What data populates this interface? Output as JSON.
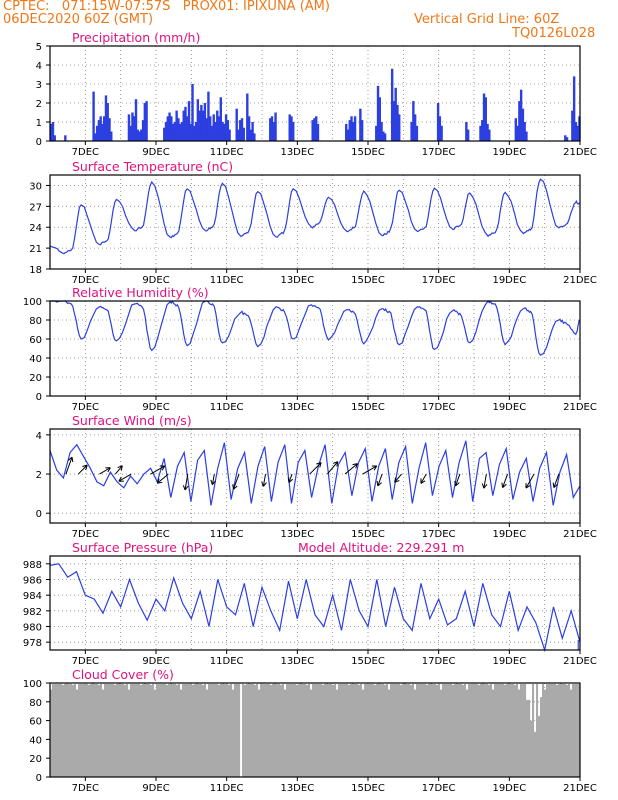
{
  "header": {
    "line1_left": "CPTEC:   071:15W-07:57S   PROX01: IPIXUNA (AM)",
    "line2_left": "06DEC2020 60Z (GMT)",
    "line2_right": "Vertical Grid Line: 60Z",
    "line3_right": "TQ0126L028"
  },
  "colors": {
    "header": "#f07818",
    "title": "#e0127e",
    "series": "#2c3fe0",
    "cloud": "#aaaaaa",
    "wind_arrow": "#000000"
  },
  "x_axis": {
    "tick_labels": [
      "7DEC",
      "9DEC",
      "11DEC",
      "13DEC",
      "15DEC",
      "17DEC",
      "19DEC",
      "21DEC"
    ],
    "range_days": [
      6.0,
      21.0
    ]
  },
  "chart_data": [
    {
      "type": "bar",
      "title": "Precipitation  (mm/h)",
      "ylim": [
        0,
        5
      ],
      "yticks": [
        "0",
        "1",
        "2",
        "3",
        "4",
        "5"
      ],
      "grid": true,
      "bursts": [
        {
          "day": 6.0,
          "values": [
            0.9,
            1.0,
            0.3
          ]
        },
        {
          "day": 6.4,
          "values": [
            0.3
          ]
        },
        {
          "day": 7.2,
          "values": [
            2.6,
            0.4,
            0.8,
            1.1,
            1.3,
            0.9,
            1.3,
            2.4,
            2.0,
            1.2,
            0.5
          ]
        },
        {
          "day": 8.2,
          "values": [
            1.4,
            0.8,
            1.5,
            1.3,
            2.2,
            0.6,
            0.5,
            0.6,
            1.1,
            2.0,
            2.1
          ]
        },
        {
          "day": 9.2,
          "values": [
            0.7,
            1.0,
            1.3,
            1.5,
            1.3,
            0.9,
            1.0,
            1.6,
            1.2,
            0.9,
            1.0,
            1.4,
            0.8,
            1.3,
            0.6
          ]
        },
        {
          "day": 9.75,
          "values": [
            1.6,
            1.8,
            1.1,
            2.1,
            0.9,
            3.0,
            0.8,
            1.0,
            2.2,
            1.6,
            1.9,
            1.6,
            0.6,
            1.2,
            2.6,
            1.3,
            0.8,
            1.4,
            1.0,
            0.6
          ]
        },
        {
          "day": 10.25,
          "values": [
            0.6,
            1.0,
            2.0,
            1.1
          ]
        },
        {
          "day": 10.7,
          "values": [
            1.6,
            1.3,
            2.3,
            1.0,
            0.9,
            1.4,
            1.1,
            0.6
          ]
        },
        {
          "day": 11.25,
          "values": [
            1.7,
            0.6,
            1.1,
            1.2,
            0.7
          ]
        },
        {
          "day": 11.55,
          "values": [
            2.5,
            1.3,
            0.6,
            1.0,
            0.4
          ]
        },
        {
          "day": 12.2,
          "values": [
            1.2,
            1.3,
            1.0,
            1.5
          ]
        },
        {
          "day": 12.75,
          "values": [
            1.4,
            1.3,
            1.0
          ]
        },
        {
          "day": 13.4,
          "values": [
            1.1,
            1.2,
            1.3,
            0.9
          ]
        },
        {
          "day": 14.35,
          "values": [
            0.9,
            0.6,
            1.1,
            1.3,
            1.0,
            1.3
          ]
        },
        {
          "day": 14.75,
          "values": [
            1.7,
            1.1
          ]
        },
        {
          "day": 15.2,
          "values": [
            0.8,
            2.9,
            2.3,
            1.0,
            0.5,
            0.4
          ]
        },
        {
          "day": 15.65,
          "values": [
            3.8,
            2.1,
            2.8,
            1.9,
            1.4
          ]
        },
        {
          "day": 16.2,
          "values": [
            1.0,
            2.1,
            1.4,
            0.8
          ]
        },
        {
          "day": 16.95,
          "values": [
            2.0,
            1.3,
            0.8
          ]
        },
        {
          "day": 17.75,
          "values": [
            1.0,
            0.6
          ]
        },
        {
          "day": 18.15,
          "values": [
            0.8,
            1.1,
            2.5,
            2.3,
            0.9,
            0.6
          ]
        },
        {
          "day": 19.15,
          "values": [
            1.2,
            0.8,
            2.1,
            2.7,
            1.7,
            1.0,
            0.5
          ]
        },
        {
          "day": 20.55,
          "values": [
            0.3,
            0.2
          ]
        },
        {
          "day": 20.75,
          "values": [
            1.6,
            3.4,
            1.0,
            0.8,
            1.3
          ]
        }
      ]
    },
    {
      "type": "line",
      "title": "Surface Temperature (nC)",
      "ylim": [
        18,
        31.5
      ],
      "yticks": [
        "18",
        "21",
        "24",
        "27",
        "30"
      ],
      "grid": true,
      "daily_min": [
        20.2,
        21.5,
        23.5,
        22.6,
        23.5,
        22.7,
        22.6,
        24.0,
        23.4,
        22.8,
        23.4,
        23.7,
        22.7,
        23.1,
        23.9
      ],
      "daily_max": [
        27.2,
        28.0,
        30.5,
        29.5,
        30.3,
        29.1,
        29.5,
        28.3,
        29.2,
        29.3,
        29.6,
        28.9,
        29.0,
        30.9,
        27.6
      ],
      "start_value": 21.3,
      "end_value": 27.4
    },
    {
      "type": "line",
      "title": "Relative Humidity (%)",
      "ylim": [
        0,
        100
      ],
      "yticks": [
        "0",
        "20",
        "40",
        "60",
        "80",
        "100"
      ],
      "grid": true,
      "daily_min": [
        60,
        58,
        48,
        53,
        56,
        52,
        60,
        59,
        55,
        54,
        49,
        56,
        54,
        43,
        65
      ],
      "daily_max": [
        100,
        94,
        97,
        99,
        100,
        88,
        94,
        96,
        91,
        92,
        94,
        90,
        100,
        92,
        80
      ],
      "start_value": 100,
      "end_value": 80
    },
    {
      "type": "line",
      "title": "Surface Wind  (m/s)",
      "ylim": [
        -0.5,
        4.3
      ],
      "yticks": [
        "0",
        "2",
        "4"
      ],
      "grid": true,
      "series_values": [
        3.2,
        2.2,
        1.8,
        3.1,
        3.5,
        2.9,
        2.3,
        1.6,
        1.4,
        2.1,
        1.6,
        1.3,
        1.9,
        1.5,
        2.0,
        2.3,
        1.6,
        2.8,
        0.8,
        2.4,
        3.1,
        0.6,
        2.7,
        3.2,
        0.4,
        2.3,
        3.6,
        0.7,
        2.3,
        3.1,
        0.5,
        2.4,
        3.4,
        0.6,
        2.6,
        3.5,
        0.5,
        2.6,
        3.2,
        0.8,
        2.4,
        3.5,
        0.5,
        2.5,
        3.1,
        0.9,
        2.6,
        3.3,
        0.6,
        2.4,
        3.3,
        0.7,
        2.6,
        3.4,
        0.5,
        2.3,
        3.6,
        0.9,
        2.4,
        3.2,
        0.8,
        2.6,
        3.7,
        0.6,
        2.8,
        3.1,
        0.9,
        2.5,
        3.3,
        0.7,
        2.1,
        2.8,
        0.6,
        2.3,
        3.1,
        0.4,
        2.1,
        3.0,
        0.8,
        1.4
      ],
      "wind_arrows": [
        {
          "day": 6.45,
          "dir_deg": 20,
          "len": 1.0
        },
        {
          "day": 6.8,
          "dir_deg": 45,
          "len": 0.7
        },
        {
          "day": 7.4,
          "dir_deg": 60,
          "len": 0.7
        },
        {
          "day": 7.85,
          "dir_deg": 40,
          "len": 0.6
        },
        {
          "day": 8.3,
          "dir_deg": 240,
          "len": 0.8
        },
        {
          "day": 8.85,
          "dir_deg": 60,
          "len": 0.9
        },
        {
          "day": 9.35,
          "dir_deg": 230,
          "len": 0.8
        },
        {
          "day": 9.9,
          "dir_deg": 190,
          "len": 0.9
        },
        {
          "day": 10.65,
          "dir_deg": 190,
          "len": 0.6
        },
        {
          "day": 11.35,
          "dir_deg": 200,
          "len": 0.9
        },
        {
          "day": 12.1,
          "dir_deg": 190,
          "len": 0.7
        },
        {
          "day": 12.85,
          "dir_deg": 200,
          "len": 0.5
        },
        {
          "day": 13.35,
          "dir_deg": 45,
          "len": 0.9
        },
        {
          "day": 13.85,
          "dir_deg": 40,
          "len": 0.9
        },
        {
          "day": 14.35,
          "dir_deg": 50,
          "len": 0.9
        },
        {
          "day": 14.85,
          "dir_deg": 60,
          "len": 0.9
        },
        {
          "day": 15.4,
          "dir_deg": 200,
          "len": 0.7
        },
        {
          "day": 15.95,
          "dir_deg": 220,
          "len": 0.6
        },
        {
          "day": 16.65,
          "dir_deg": 210,
          "len": 0.6
        },
        {
          "day": 17.6,
          "dir_deg": 200,
          "len": 0.7
        },
        {
          "day": 18.35,
          "dir_deg": 190,
          "len": 0.8
        },
        {
          "day": 18.95,
          "dir_deg": 200,
          "len": 0.8
        },
        {
          "day": 19.7,
          "dir_deg": 210,
          "len": 0.9
        },
        {
          "day": 20.4,
          "dir_deg": 200,
          "len": 0.8
        }
      ]
    },
    {
      "type": "line",
      "title": "Surface Pressure (hPa)",
      "annotation": "Model Altitude: 229.291  m",
      "ylim": [
        977,
        989
      ],
      "yticks": [
        "978",
        "980",
        "982",
        "984",
        "986",
        "988"
      ],
      "grid": true,
      "series_values": [
        987.8,
        988.0,
        986.3,
        987.0,
        984.0,
        983.5,
        981.7,
        984.5,
        982.5,
        986.0,
        983.0,
        980.8,
        983.5,
        982.0,
        986.2,
        983.0,
        981.0,
        984.5,
        980.0,
        986.0,
        982.5,
        981.5,
        985.5,
        980.0,
        985.0,
        982.0,
        979.5,
        985.8,
        981.0,
        986.0,
        981.5,
        980.0,
        984.0,
        979.5,
        986.0,
        982.0,
        980.0,
        986.0,
        980.0,
        985.0,
        981.0,
        979.5,
        985.5,
        981.0,
        983.5,
        980.2,
        981.0,
        984.5,
        980.0,
        985.5,
        981.5,
        980.0,
        984.5,
        979.5,
        982.5,
        980.5,
        977.0,
        982.5,
        978.5,
        982.0,
        978.0
      ],
      "vertical_tick": {
        "day": 20.95
      }
    },
    {
      "type": "bar",
      "title": "Cloud Cover (%)",
      "ylim": [
        0,
        100
      ],
      "yticks": [
        "0",
        "20",
        "40",
        "60",
        "80",
        "100"
      ],
      "grid": true,
      "baseline_values": [
        93,
        99,
        99,
        99,
        99,
        99,
        98,
        99,
        100,
        99,
        99,
        98,
        99
      ],
      "dips": [
        {
          "day": 11.4,
          "value": 0
        },
        {
          "day": 19.5,
          "value": 82
        },
        {
          "day": 19.6,
          "value": 60
        },
        {
          "day": 19.7,
          "value": 48
        },
        {
          "day": 19.8,
          "value": 65
        },
        {
          "day": 19.85,
          "value": 85
        }
      ]
    }
  ]
}
